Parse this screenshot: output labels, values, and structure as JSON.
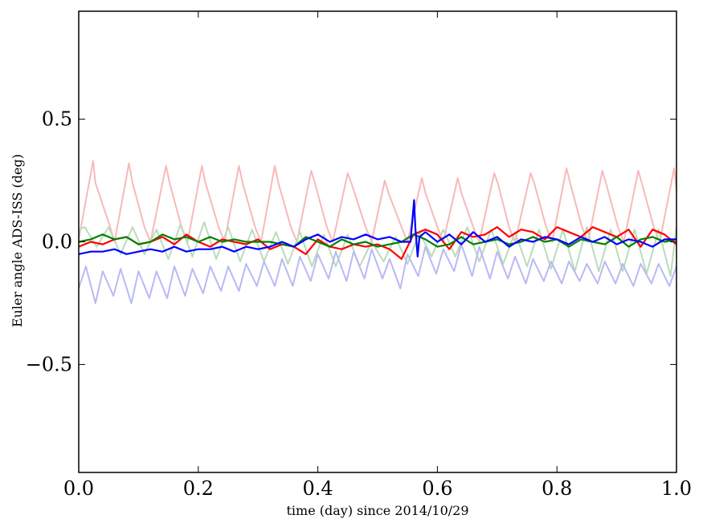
{
  "chart_data": {
    "type": "line",
    "title": "",
    "xlabel": "time (day) since 2014/10/29",
    "ylabel": "Euler angle ADS-ISS (deg)",
    "xlim": [
      0.0,
      1.0
    ],
    "ylim": [
      -0.94,
      0.94
    ],
    "x_ticks": [
      0.0,
      0.2,
      0.4,
      0.6,
      0.8,
      1.0
    ],
    "x_tick_labels": [
      "0.0",
      "0.2",
      "0.4",
      "0.6",
      "0.8",
      "1.0"
    ],
    "y_ticks": [
      0.5,
      0.0,
      -0.5
    ],
    "y_tick_labels": [
      "0.5",
      "0.0",
      "−0.5"
    ],
    "grid": false,
    "legend": "none",
    "series": [
      {
        "key": "pink",
        "color": "#f8b9b9",
        "style": "faint",
        "x": [
          0.0,
          0.024,
          0.028,
          0.05,
          0.06,
          0.084,
          0.09,
          0.11,
          0.12,
          0.146,
          0.152,
          0.172,
          0.182,
          0.206,
          0.212,
          0.234,
          0.244,
          0.268,
          0.274,
          0.295,
          0.305,
          0.328,
          0.334,
          0.355,
          0.365,
          0.389,
          0.395,
          0.415,
          0.425,
          0.45,
          0.456,
          0.48,
          0.49,
          0.512,
          0.518,
          0.54,
          0.55,
          0.574,
          0.58,
          0.6,
          0.61,
          0.634,
          0.64,
          0.66,
          0.67,
          0.695,
          0.701,
          0.72,
          0.73,
          0.756,
          0.762,
          0.782,
          0.792,
          0.816,
          0.822,
          0.842,
          0.852,
          0.876,
          0.882,
          0.902,
          0.912,
          0.936,
          0.942,
          0.962,
          0.972,
          0.996,
          1.0
        ],
        "y": [
          0.01,
          0.33,
          0.24,
          0.08,
          0.0,
          0.32,
          0.24,
          0.06,
          0.0,
          0.31,
          0.24,
          0.06,
          0.0,
          0.31,
          0.24,
          0.06,
          0.0,
          0.31,
          0.24,
          0.06,
          0.0,
          0.31,
          0.24,
          0.06,
          0.0,
          0.29,
          0.24,
          0.06,
          0.0,
          0.28,
          0.24,
          0.06,
          0.0,
          0.25,
          0.2,
          0.06,
          0.0,
          0.26,
          0.2,
          0.06,
          0.0,
          0.26,
          0.2,
          0.06,
          0.0,
          0.28,
          0.24,
          0.06,
          0.0,
          0.28,
          0.24,
          0.06,
          0.0,
          0.3,
          0.24,
          0.06,
          0.0,
          0.29,
          0.24,
          0.06,
          0.0,
          0.29,
          0.24,
          0.06,
          0.0,
          0.3,
          0.21
        ]
      },
      {
        "key": "lightgreen",
        "color": "#b9dcb9",
        "style": "faint",
        "x": [
          0.0,
          0.01,
          0.03,
          0.05,
          0.07,
          0.09,
          0.11,
          0.13,
          0.15,
          0.17,
          0.19,
          0.21,
          0.23,
          0.25,
          0.27,
          0.29,
          0.31,
          0.33,
          0.35,
          0.37,
          0.39,
          0.41,
          0.43,
          0.45,
          0.47,
          0.49,
          0.51,
          0.53,
          0.55,
          0.57,
          0.59,
          0.61,
          0.63,
          0.65,
          0.67,
          0.69,
          0.71,
          0.73,
          0.75,
          0.77,
          0.79,
          0.81,
          0.83,
          0.85,
          0.87,
          0.89,
          0.91,
          0.93,
          0.95,
          0.97,
          0.99,
          1.0
        ],
        "y": [
          0.05,
          0.06,
          -0.02,
          0.06,
          -0.05,
          0.06,
          -0.05,
          0.05,
          -0.07,
          0.07,
          -0.06,
          0.08,
          -0.07,
          0.06,
          -0.08,
          0.05,
          -0.08,
          0.04,
          -0.09,
          0.04,
          -0.1,
          0.03,
          -0.1,
          0.03,
          -0.1,
          0.0,
          -0.08,
          0.02,
          -0.09,
          0.04,
          -0.06,
          0.05,
          -0.06,
          0.06,
          -0.08,
          0.05,
          -0.09,
          0.04,
          -0.1,
          0.05,
          -0.11,
          0.05,
          -0.12,
          0.06,
          -0.12,
          0.05,
          -0.12,
          0.05,
          -0.13,
          0.05,
          -0.14,
          0.06
        ]
      },
      {
        "key": "lightblue",
        "color": "#b9b9f5",
        "style": "faint",
        "x": [
          0.0,
          0.012,
          0.028,
          0.04,
          0.058,
          0.07,
          0.088,
          0.1,
          0.118,
          0.13,
          0.148,
          0.16,
          0.178,
          0.19,
          0.208,
          0.22,
          0.238,
          0.25,
          0.268,
          0.28,
          0.298,
          0.31,
          0.328,
          0.34,
          0.358,
          0.37,
          0.388,
          0.4,
          0.418,
          0.43,
          0.448,
          0.46,
          0.478,
          0.49,
          0.508,
          0.52,
          0.538,
          0.55,
          0.568,
          0.58,
          0.598,
          0.61,
          0.628,
          0.64,
          0.658,
          0.67,
          0.688,
          0.7,
          0.718,
          0.73,
          0.748,
          0.76,
          0.778,
          0.79,
          0.808,
          0.82,
          0.838,
          0.85,
          0.868,
          0.88,
          0.898,
          0.91,
          0.928,
          0.94,
          0.958,
          0.97,
          0.988,
          1.0
        ],
        "y": [
          -0.19,
          -0.1,
          -0.25,
          -0.12,
          -0.22,
          -0.11,
          -0.25,
          -0.12,
          -0.23,
          -0.12,
          -0.23,
          -0.1,
          -0.22,
          -0.11,
          -0.21,
          -0.1,
          -0.2,
          -0.1,
          -0.2,
          -0.09,
          -0.18,
          -0.08,
          -0.18,
          -0.07,
          -0.18,
          -0.06,
          -0.16,
          -0.05,
          -0.15,
          -0.04,
          -0.16,
          -0.04,
          -0.15,
          -0.03,
          -0.15,
          -0.07,
          -0.19,
          -0.05,
          -0.14,
          -0.02,
          -0.13,
          -0.03,
          -0.12,
          -0.01,
          -0.14,
          -0.02,
          -0.15,
          -0.04,
          -0.15,
          -0.06,
          -0.17,
          -0.07,
          -0.16,
          -0.08,
          -0.17,
          -0.08,
          -0.16,
          -0.09,
          -0.17,
          -0.08,
          -0.17,
          -0.09,
          -0.18,
          -0.09,
          -0.17,
          -0.09,
          -0.18,
          -0.1
        ]
      },
      {
        "key": "red",
        "color": "#ff0000",
        "style": "bold",
        "x": [
          0.0,
          0.02,
          0.04,
          0.06,
          0.08,
          0.1,
          0.12,
          0.14,
          0.16,
          0.18,
          0.2,
          0.22,
          0.24,
          0.26,
          0.28,
          0.3,
          0.32,
          0.34,
          0.36,
          0.38,
          0.4,
          0.42,
          0.44,
          0.46,
          0.48,
          0.5,
          0.52,
          0.54,
          0.56,
          0.58,
          0.6,
          0.62,
          0.64,
          0.66,
          0.68,
          0.7,
          0.72,
          0.74,
          0.76,
          0.78,
          0.8,
          0.82,
          0.84,
          0.86,
          0.88,
          0.9,
          0.92,
          0.94,
          0.96,
          0.98,
          1.0
        ],
        "y": [
          -0.02,
          0.0,
          -0.01,
          0.01,
          0.02,
          -0.01,
          0.0,
          0.02,
          -0.01,
          0.03,
          0.0,
          -0.02,
          0.01,
          0.0,
          -0.01,
          0.01,
          -0.03,
          -0.01,
          -0.02,
          -0.05,
          0.01,
          -0.02,
          -0.03,
          -0.01,
          -0.02,
          -0.01,
          -0.03,
          -0.07,
          0.03,
          0.05,
          0.03,
          -0.03,
          0.04,
          0.02,
          0.03,
          0.06,
          0.02,
          0.05,
          0.04,
          0.01,
          0.06,
          0.04,
          0.02,
          0.06,
          0.04,
          0.02,
          0.05,
          -0.02,
          0.05,
          0.03,
          -0.01
        ]
      },
      {
        "key": "green",
        "color": "#008000",
        "style": "bold",
        "x": [
          0.0,
          0.02,
          0.04,
          0.06,
          0.08,
          0.1,
          0.12,
          0.14,
          0.16,
          0.18,
          0.2,
          0.22,
          0.24,
          0.26,
          0.28,
          0.3,
          0.32,
          0.34,
          0.36,
          0.38,
          0.4,
          0.42,
          0.44,
          0.46,
          0.48,
          0.5,
          0.52,
          0.54,
          0.56,
          0.58,
          0.6,
          0.62,
          0.64,
          0.66,
          0.68,
          0.7,
          0.72,
          0.74,
          0.76,
          0.78,
          0.8,
          0.82,
          0.84,
          0.86,
          0.88,
          0.9,
          0.92,
          0.94,
          0.96,
          0.98,
          1.0
        ],
        "y": [
          0.0,
          0.01,
          0.03,
          0.01,
          0.02,
          -0.01,
          0.0,
          0.03,
          0.01,
          0.02,
          0.0,
          0.02,
          0.0,
          0.01,
          0.0,
          0.0,
          0.0,
          -0.01,
          -0.02,
          0.02,
          0.0,
          -0.02,
          0.01,
          -0.01,
          0.0,
          -0.02,
          -0.01,
          0.0,
          0.03,
          0.01,
          -0.02,
          -0.01,
          0.02,
          -0.01,
          0.0,
          0.01,
          -0.01,
          0.0,
          0.02,
          0.0,
          0.01,
          -0.02,
          0.01,
          0.0,
          -0.01,
          0.02,
          -0.02,
          0.01,
          0.02,
          0.0,
          0.01
        ]
      },
      {
        "key": "blue",
        "color": "#0000ff",
        "style": "bold",
        "x": [
          0.0,
          0.02,
          0.04,
          0.06,
          0.08,
          0.1,
          0.12,
          0.14,
          0.16,
          0.18,
          0.2,
          0.22,
          0.24,
          0.26,
          0.28,
          0.3,
          0.32,
          0.34,
          0.36,
          0.38,
          0.4,
          0.42,
          0.44,
          0.46,
          0.48,
          0.5,
          0.52,
          0.54,
          0.555,
          0.561,
          0.563,
          0.567,
          0.57,
          0.58,
          0.6,
          0.62,
          0.64,
          0.66,
          0.68,
          0.7,
          0.72,
          0.74,
          0.76,
          0.78,
          0.8,
          0.82,
          0.84,
          0.86,
          0.88,
          0.9,
          0.92,
          0.94,
          0.96,
          0.98,
          1.0
        ],
        "y": [
          -0.05,
          -0.04,
          -0.04,
          -0.03,
          -0.05,
          -0.04,
          -0.03,
          -0.04,
          -0.02,
          -0.04,
          -0.03,
          -0.03,
          -0.02,
          -0.04,
          -0.02,
          -0.03,
          -0.02,
          0.0,
          -0.02,
          0.01,
          0.03,
          0.0,
          0.02,
          0.01,
          0.03,
          0.01,
          0.02,
          0.0,
          0.0,
          0.17,
          0.06,
          -0.06,
          0.02,
          0.04,
          0.0,
          0.03,
          -0.01,
          0.04,
          0.0,
          0.02,
          -0.02,
          0.01,
          0.0,
          0.02,
          0.01,
          -0.01,
          0.02,
          0.0,
          0.02,
          -0.01,
          0.01,
          0.0,
          -0.02,
          0.01,
          0.01
        ]
      }
    ]
  }
}
